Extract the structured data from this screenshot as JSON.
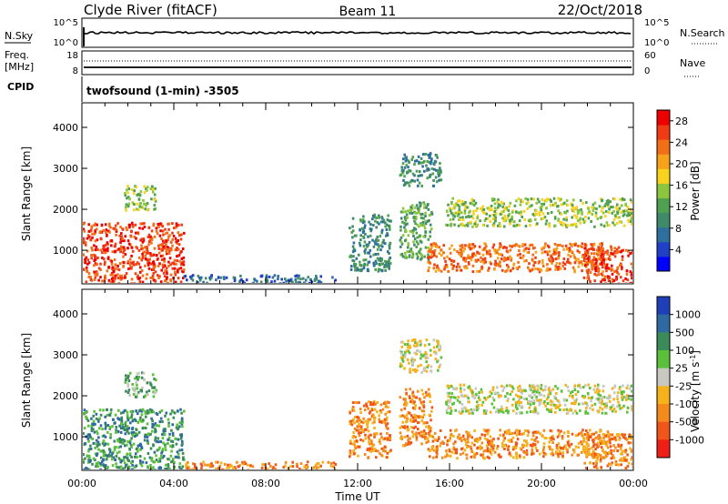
{
  "header": {
    "station": "Clyde River (fitACF)",
    "beam": "Beam 11",
    "date": "22/Oct/2018"
  },
  "strip_noise": {
    "left_label": "N.Sky",
    "left_ticks": [
      "10^5",
      "10^0"
    ],
    "right_ticks": [
      "10^5",
      "10^0"
    ],
    "right_label": "N.Search"
  },
  "strip_freq": {
    "left_label_1": "Freq.",
    "left_label_2": "[MHz]",
    "left_ticks": [
      "18",
      "8"
    ],
    "right_ticks": [
      "60",
      "0"
    ],
    "right_label": "Nave"
  },
  "cpid": {
    "label": "CPID",
    "mode": "twofsound (1-min) -3505"
  },
  "chart_data": [
    {
      "type": "heatmap",
      "quantity": "Power",
      "xlabel": "",
      "ylabel": "Slant Range [km]",
      "x_ticks": [
        "00:00",
        "04:00",
        "08:00",
        "12:00",
        "16:00",
        "20:00",
        "00:00"
      ],
      "xlim_hours": [
        0,
        24
      ],
      "y_ticks": [
        "1000",
        "2000",
        "3000",
        "4000"
      ],
      "ylim_km": [
        180,
        4600
      ],
      "colorbar": {
        "label": "Power [dB]",
        "ticks": [
          "4",
          "8",
          "12",
          "16",
          "20",
          "24",
          "28"
        ],
        "range": [
          0,
          30
        ],
        "colors": [
          "#0000ff",
          "#2040c8",
          "#2f6f9f",
          "#3f8a6a",
          "#4fa050",
          "#8cc63f",
          "#f7d21f",
          "#f6a21b",
          "#f36f17",
          "#ef3c15",
          "#ee0000"
        ]
      },
      "regions": [
        {
          "name": "near-range-morning",
          "t": [
            0.0,
            4.4
          ],
          "r": [
            200,
            1700
          ],
          "level": 26
        },
        {
          "name": "patch-2400",
          "t": [
            1.8,
            3.2
          ],
          "r": [
            2000,
            2600
          ],
          "level": 14
        },
        {
          "name": "ground-band",
          "t": [
            4.4,
            11.0
          ],
          "r": [
            200,
            420
          ],
          "level": 6
        },
        {
          "name": "column-12",
          "t": [
            11.6,
            13.4
          ],
          "r": [
            500,
            1900
          ],
          "level": 9
        },
        {
          "name": "plume-14",
          "t": [
            13.8,
            15.2
          ],
          "r": [
            800,
            2200
          ],
          "level": 12
        },
        {
          "name": "arc-3200",
          "t": [
            13.8,
            15.6
          ],
          "r": [
            2600,
            3400
          ],
          "level": 8
        },
        {
          "name": "main-band",
          "t": [
            15.0,
            23.0
          ],
          "r": [
            500,
            1200
          ],
          "level": 24
        },
        {
          "name": "upper-band",
          "t": [
            15.8,
            24.0
          ],
          "r": [
            1600,
            2300
          ],
          "level": 14
        },
        {
          "name": "late-near",
          "t": [
            21.8,
            24.0
          ],
          "r": [
            200,
            1100
          ],
          "level": 28
        }
      ]
    },
    {
      "type": "heatmap",
      "quantity": "Velocity",
      "xlabel": "Time UT",
      "ylabel": "Slant Range [km]",
      "x_ticks": [
        "00:00",
        "04:00",
        "08:00",
        "12:00",
        "16:00",
        "20:00",
        "00:00"
      ],
      "xlim_hours": [
        0,
        24
      ],
      "y_ticks": [
        "1000",
        "2000",
        "3000",
        "4000"
      ],
      "ylim_km": [
        180,
        4600
      ],
      "colorbar": {
        "label": "Velocity [m s^-1]",
        "label_main": "Velocity [m s",
        "label_sup": "-1",
        "label_end": "]",
        "ticks": [
          "1000",
          "500",
          "100",
          "25",
          "-25",
          "-100",
          "-500",
          "-1000"
        ],
        "colors": [
          "#1f3fb8",
          "#2e6aa0",
          "#3a8a5a",
          "#5cc13a",
          "#c8c8c0",
          "#f6b21b",
          "#f58a1c",
          "#f2551a",
          "#ef1f16"
        ]
      },
      "regions": [
        {
          "name": "near-range-morning",
          "t": [
            0.0,
            4.4
          ],
          "r": [
            200,
            1700
          ],
          "v": 200
        },
        {
          "name": "patch-2400",
          "t": [
            1.8,
            3.2
          ],
          "r": [
            2000,
            2600
          ],
          "v": 60
        },
        {
          "name": "ground-band",
          "t": [
            4.4,
            11.0
          ],
          "r": [
            200,
            420
          ],
          "v": -150
        },
        {
          "name": "column-12",
          "t": [
            11.6,
            13.4
          ],
          "r": [
            500,
            1900
          ],
          "v": -400
        },
        {
          "name": "plume-14",
          "t": [
            13.8,
            15.2
          ],
          "r": [
            800,
            2200
          ],
          "v": -300
        },
        {
          "name": "arc-3200",
          "t": [
            13.8,
            15.6
          ],
          "r": [
            2600,
            3400
          ],
          "v": 0
        },
        {
          "name": "main-band",
          "t": [
            15.0,
            23.0
          ],
          "r": [
            500,
            1200
          ],
          "v": -250
        },
        {
          "name": "upper-band",
          "t": [
            15.8,
            24.0
          ],
          "r": [
            1600,
            2300
          ],
          "v": 0
        },
        {
          "name": "late-near",
          "t": [
            21.8,
            24.0
          ],
          "r": [
            200,
            1100
          ],
          "v": -200
        }
      ]
    }
  ]
}
